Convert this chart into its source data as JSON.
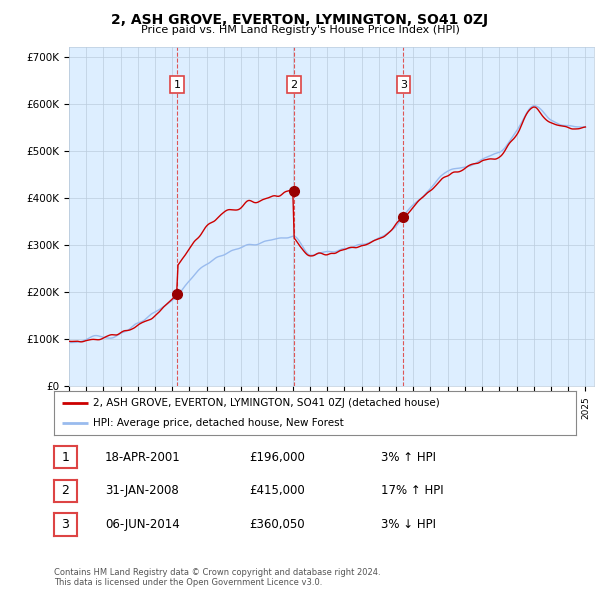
{
  "title": "2, ASH GROVE, EVERTON, LYMINGTON, SO41 0ZJ",
  "subtitle": "Price paid vs. HM Land Registry's House Price Index (HPI)",
  "ylabel_ticks": [
    "£0",
    "£100K",
    "£200K",
    "£300K",
    "£400K",
    "£500K",
    "£600K",
    "£700K"
  ],
  "ytick_values": [
    0,
    100000,
    200000,
    300000,
    400000,
    500000,
    600000,
    700000
  ],
  "ylim": [
    0,
    720000
  ],
  "xlim_start": 1995.0,
  "xlim_end": 2025.5,
  "sale_dates": [
    2001.29,
    2008.08,
    2014.43
  ],
  "sale_prices": [
    196000,
    415000,
    360050
  ],
  "sale_labels": [
    "1",
    "2",
    "3"
  ],
  "red_line_color": "#cc0000",
  "blue_line_color": "#99bbee",
  "chart_bg_color": "#ddeeff",
  "vline_color": "#dd4444",
  "sale_marker_color": "#990000",
  "legend_label_red": "2, ASH GROVE, EVERTON, LYMINGTON, SO41 0ZJ (detached house)",
  "legend_label_blue": "HPI: Average price, detached house, New Forest",
  "table_rows": [
    {
      "label": "1",
      "date": "18-APR-2001",
      "price": "£196,000",
      "change": "3% ↑ HPI"
    },
    {
      "label": "2",
      "date": "31-JAN-2008",
      "price": "£415,000",
      "change": "17% ↑ HPI"
    },
    {
      "label": "3",
      "date": "06-JUN-2014",
      "price": "£360,050",
      "change": "3% ↓ HPI"
    }
  ],
  "footnote": "Contains HM Land Registry data © Crown copyright and database right 2024.\nThis data is licensed under the Open Government Licence v3.0.",
  "background_color": "#ffffff",
  "grid_color": "#bbccdd"
}
